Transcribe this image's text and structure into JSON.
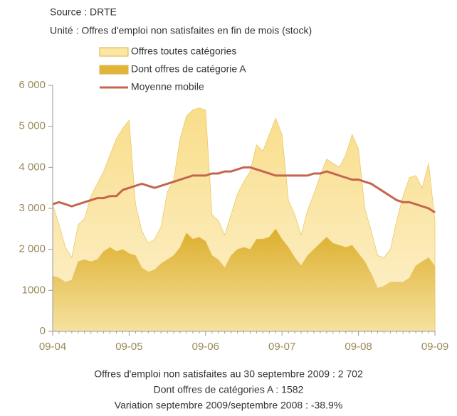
{
  "chart_data": {
    "type": "area",
    "source": "Source : DRTE",
    "subtitle": "Unité : Offres d'emploi non satisfaites en fin de mois (stock)",
    "categories": [
      "09-04",
      null,
      null,
      null,
      null,
      null,
      null,
      null,
      null,
      null,
      null,
      null,
      "09-05",
      null,
      null,
      null,
      null,
      null,
      null,
      null,
      null,
      null,
      null,
      null,
      "09-06",
      null,
      null,
      null,
      null,
      null,
      null,
      null,
      null,
      null,
      null,
      null,
      "09-07",
      null,
      null,
      null,
      null,
      null,
      null,
      null,
      null,
      null,
      null,
      null,
      "09-08",
      null,
      null,
      null,
      null,
      null,
      null,
      null,
      null,
      null,
      null,
      null,
      "09-09"
    ],
    "series": [
      {
        "name": "Offres toutes catégories",
        "kind": "area",
        "color": "#fbe6a2",
        "values": [
          3100,
          2600,
          2050,
          1800,
          2600,
          2750,
          3300,
          3600,
          3900,
          4300,
          4700,
          4950,
          5150,
          3100,
          2450,
          2150,
          2250,
          2550,
          3400,
          3700,
          4700,
          5250,
          5400,
          5450,
          5400,
          2850,
          2700,
          2350,
          2850,
          3350,
          3650,
          3900,
          4550,
          4400,
          4800,
          5200,
          4800,
          3200,
          2850,
          2350,
          2950,
          3350,
          3800,
          4200,
          4100,
          4000,
          4300,
          4800,
          4450,
          3000,
          2450,
          1850,
          1800,
          2000,
          2700,
          3300,
          3750,
          3800,
          3500,
          4100,
          2702
        ]
      },
      {
        "name": "Dont offres de catégorie A",
        "kind": "area",
        "color": "#e2b53a",
        "values": [
          1350,
          1300,
          1200,
          1250,
          1700,
          1750,
          1700,
          1750,
          1950,
          2050,
          1950,
          2000,
          1900,
          1850,
          1550,
          1450,
          1500,
          1650,
          1750,
          1850,
          2050,
          2400,
          2250,
          2300,
          2200,
          1850,
          1750,
          1550,
          1850,
          2000,
          2050,
          2000,
          2250,
          2250,
          2300,
          2500,
          2250,
          2050,
          1800,
          1600,
          1850,
          2000,
          2150,
          2300,
          2150,
          2100,
          2050,
          2100,
          1900,
          1700,
          1400,
          1050,
          1100,
          1200,
          1200,
          1200,
          1300,
          1600,
          1700,
          1800,
          1582
        ]
      },
      {
        "name": "Moyenne mobile",
        "kind": "line",
        "color": "#c4654e",
        "values": [
          3100,
          3150,
          3100,
          3050,
          3100,
          3150,
          3200,
          3250,
          3250,
          3300,
          3300,
          3450,
          3500,
          3550,
          3600,
          3550,
          3500,
          3550,
          3600,
          3650,
          3700,
          3750,
          3800,
          3800,
          3800,
          3850,
          3850,
          3900,
          3900,
          3950,
          4000,
          4000,
          3950,
          3900,
          3850,
          3800,
          3800,
          3800,
          3800,
          3800,
          3800,
          3850,
          3850,
          3900,
          3850,
          3800,
          3750,
          3700,
          3700,
          3650,
          3600,
          3500,
          3400,
          3300,
          3200,
          3150,
          3150,
          3100,
          3050,
          3000,
          2900
        ]
      }
    ],
    "ylim": [
      0,
      6000
    ],
    "yticks": [
      0,
      1000,
      {
        "value": 2000,
        "label": "2 000"
      },
      {
        "value": 3000,
        "label": "3 000"
      },
      {
        "value": 4000,
        "label": "4 000"
      },
      {
        "value": 5000,
        "label": "5 000"
      },
      {
        "value": 6000,
        "label": "6 000"
      }
    ],
    "notes": [
      "Offres d'emploi non satisfaites au 30 septembre 2009 : 2 702",
      "Dont offres de catégories A : 1582",
      "Variation septembre 2009/septembre 2008 : -38.9%"
    ]
  }
}
